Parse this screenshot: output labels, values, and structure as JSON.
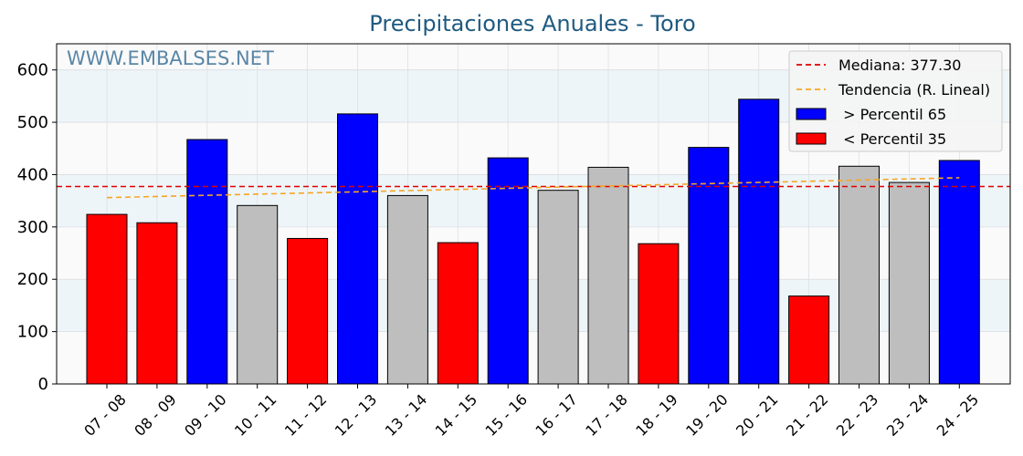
{
  "chart_data": {
    "type": "bar",
    "title": "Precipitaciones Anuales - Toro",
    "watermark": "WWW.EMBALSES.NET",
    "categories": [
      "07 - 08",
      "08 - 09",
      "09 - 10",
      "10 - 11",
      "11 - 12",
      "12 - 13",
      "13 - 14",
      "14 - 15",
      "15 - 16",
      "16 - 17",
      "17 - 18",
      "18 - 19",
      "19 - 20",
      "20 - 21",
      "21 - 22",
      "22 - 23",
      "23 - 24",
      "24 - 25"
    ],
    "values": [
      324,
      308,
      467,
      341,
      278,
      516,
      360,
      270,
      432,
      370,
      414,
      268,
      452,
      544,
      168,
      416,
      385,
      427
    ],
    "bar_classes": [
      "low",
      "low",
      "high",
      "mid",
      "low",
      "high",
      "mid",
      "low",
      "high",
      "mid",
      "mid",
      "low",
      "high",
      "high",
      "low",
      "mid",
      "mid",
      "high"
    ],
    "colors": {
      "high": "#0000ff",
      "low": "#ff0000",
      "mid": "#bebebe",
      "median": "#e00000",
      "trend": "#f5a623"
    },
    "ylim": [
      0,
      650
    ],
    "yticks": [
      0,
      100,
      200,
      300,
      400,
      500,
      600
    ],
    "median": 377.3,
    "trend": {
      "start": 356,
      "end": 394
    },
    "grid": true,
    "legend": {
      "position": "top-right",
      "entries": [
        {
          "label": "Mediana: 377.30",
          "kind": "median"
        },
        {
          "label": "Tendencia (R. Lineal)",
          "kind": "trend"
        },
        {
          "label": " > Percentil 65",
          "kind": "high"
        },
        {
          "label": " < Percentil 35",
          "kind": "low"
        }
      ]
    }
  }
}
